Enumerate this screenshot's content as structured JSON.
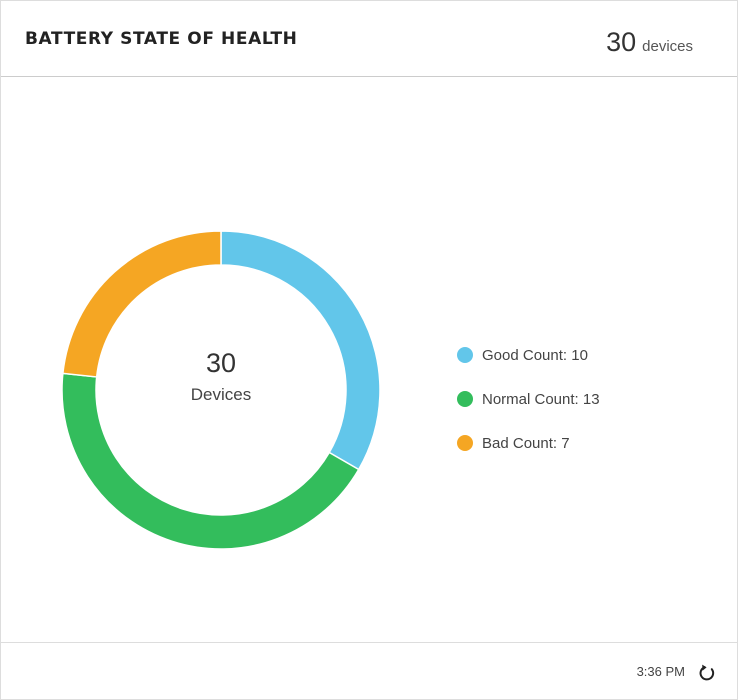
{
  "header": {
    "title": "BATTERY STATE OF HEALTH",
    "device_count": "30",
    "device_unit": "devices"
  },
  "chart_data": {
    "type": "pie",
    "title": "",
    "center_value": "30",
    "center_label": "Devices",
    "series": [
      {
        "name": "Good Count",
        "value": 10,
        "label": "Good Count: 10",
        "color": "#62c6ea"
      },
      {
        "name": "Normal Count",
        "value": 13,
        "label": "Normal Count: 13",
        "color": "#33bd5c"
      },
      {
        "name": "Bad Count",
        "value": 7,
        "label": "Bad Count: 7",
        "color": "#f5a623"
      }
    ]
  },
  "footer": {
    "time": "3:36 PM",
    "refresh_icon": "refresh-icon"
  }
}
